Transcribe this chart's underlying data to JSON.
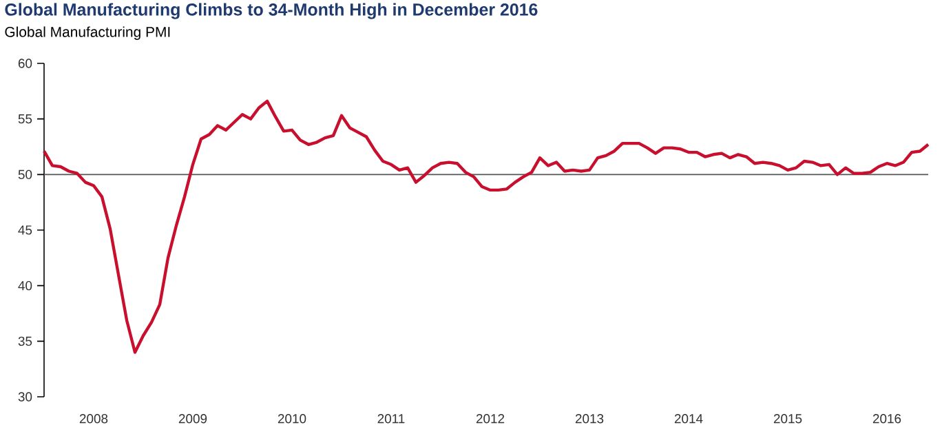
{
  "chart_data": {
    "type": "line",
    "title": "Global Manufacturing Climbs to 34-Month High in December 2016",
    "subtitle": "Global Manufacturing PMI",
    "x": [
      "2008-01",
      "2008-02",
      "2008-03",
      "2008-04",
      "2008-05",
      "2008-06",
      "2008-07",
      "2008-08",
      "2008-09",
      "2008-10",
      "2008-11",
      "2008-12",
      "2009-01",
      "2009-02",
      "2009-03",
      "2009-04",
      "2009-05",
      "2009-06",
      "2009-07",
      "2009-08",
      "2009-09",
      "2009-10",
      "2009-11",
      "2009-12",
      "2010-01",
      "2010-02",
      "2010-03",
      "2010-04",
      "2010-05",
      "2010-06",
      "2010-07",
      "2010-08",
      "2010-09",
      "2010-10",
      "2010-11",
      "2010-12",
      "2011-01",
      "2011-02",
      "2011-03",
      "2011-04",
      "2011-05",
      "2011-06",
      "2011-07",
      "2011-08",
      "2011-09",
      "2011-10",
      "2011-11",
      "2011-12",
      "2012-01",
      "2012-02",
      "2012-03",
      "2012-04",
      "2012-05",
      "2012-06",
      "2012-07",
      "2012-08",
      "2012-09",
      "2012-10",
      "2012-11",
      "2012-12",
      "2013-01",
      "2013-02",
      "2013-03",
      "2013-04",
      "2013-05",
      "2013-06",
      "2013-07",
      "2013-08",
      "2013-09",
      "2013-10",
      "2013-11",
      "2013-12",
      "2014-01",
      "2014-02",
      "2014-03",
      "2014-04",
      "2014-05",
      "2014-06",
      "2014-07",
      "2014-08",
      "2014-09",
      "2014-10",
      "2014-11",
      "2014-12",
      "2015-01",
      "2015-02",
      "2015-03",
      "2015-04",
      "2015-05",
      "2015-06",
      "2015-07",
      "2015-08",
      "2015-09",
      "2015-10",
      "2015-11",
      "2015-12",
      "2016-01",
      "2016-02",
      "2016-03",
      "2016-04",
      "2016-05",
      "2016-06",
      "2016-07",
      "2016-08",
      "2016-09",
      "2016-10",
      "2016-11",
      "2016-12"
    ],
    "series": [
      {
        "color": "#c8102e",
        "values": [
          52.1,
          50.8,
          50.7,
          50.3,
          50.1,
          49.3,
          49.0,
          48.0,
          45.1,
          41.0,
          36.9,
          34.0,
          35.5,
          36.7,
          38.3,
          42.5,
          45.4,
          48.0,
          50.9,
          53.2,
          53.6,
          54.4,
          54.0,
          54.7,
          55.4,
          55.0,
          56.0,
          56.6,
          55.2,
          53.9,
          54.0,
          53.1,
          52.7,
          52.9,
          53.3,
          53.5,
          55.3,
          54.2,
          53.8,
          53.4,
          52.2,
          51.2,
          50.9,
          50.4,
          50.6,
          49.3,
          49.9,
          50.6,
          51.0,
          51.1,
          51.0,
          50.2,
          49.8,
          48.9,
          48.6,
          48.6,
          48.7,
          49.3,
          49.8,
          50.2,
          51.5,
          50.8,
          51.1,
          50.3,
          50.4,
          50.3,
          50.4,
          51.5,
          51.7,
          52.1,
          52.8,
          52.8,
          52.8,
          52.4,
          51.9,
          52.4,
          52.4,
          52.3,
          52.0,
          52.0,
          51.6,
          51.8,
          51.9,
          51.5,
          51.8,
          51.6,
          51.0,
          51.1,
          51.0,
          50.8,
          50.4,
          50.6,
          51.2,
          51.1,
          50.8,
          50.9,
          50.0,
          50.6,
          50.1,
          50.1,
          50.2,
          50.7,
          51.0,
          50.8,
          51.1,
          52.0,
          52.1,
          52.7
        ]
      }
    ],
    "xlim": [
      "2008-01",
      "2016-12"
    ],
    "xticks": [
      {
        "value": "2008-07",
        "label": "2008"
      },
      {
        "value": "2009-07",
        "label": "2009"
      },
      {
        "value": "2010-07",
        "label": "2010"
      },
      {
        "value": "2011-07",
        "label": "2011"
      },
      {
        "value": "2012-07",
        "label": "2012"
      },
      {
        "value": "2013-07",
        "label": "2013"
      },
      {
        "value": "2014-07",
        "label": "2014"
      },
      {
        "value": "2015-07",
        "label": "2015"
      },
      {
        "value": "2016-07",
        "label": "2016"
      }
    ],
    "ylim": [
      30,
      60
    ],
    "yticks": [
      30,
      35,
      40,
      45,
      50,
      55,
      60
    ],
    "ref_lines": [
      {
        "axis": "y",
        "value": 50,
        "color": "#555555"
      }
    ],
    "grid": false,
    "marker": "none",
    "line_style": "solid"
  }
}
